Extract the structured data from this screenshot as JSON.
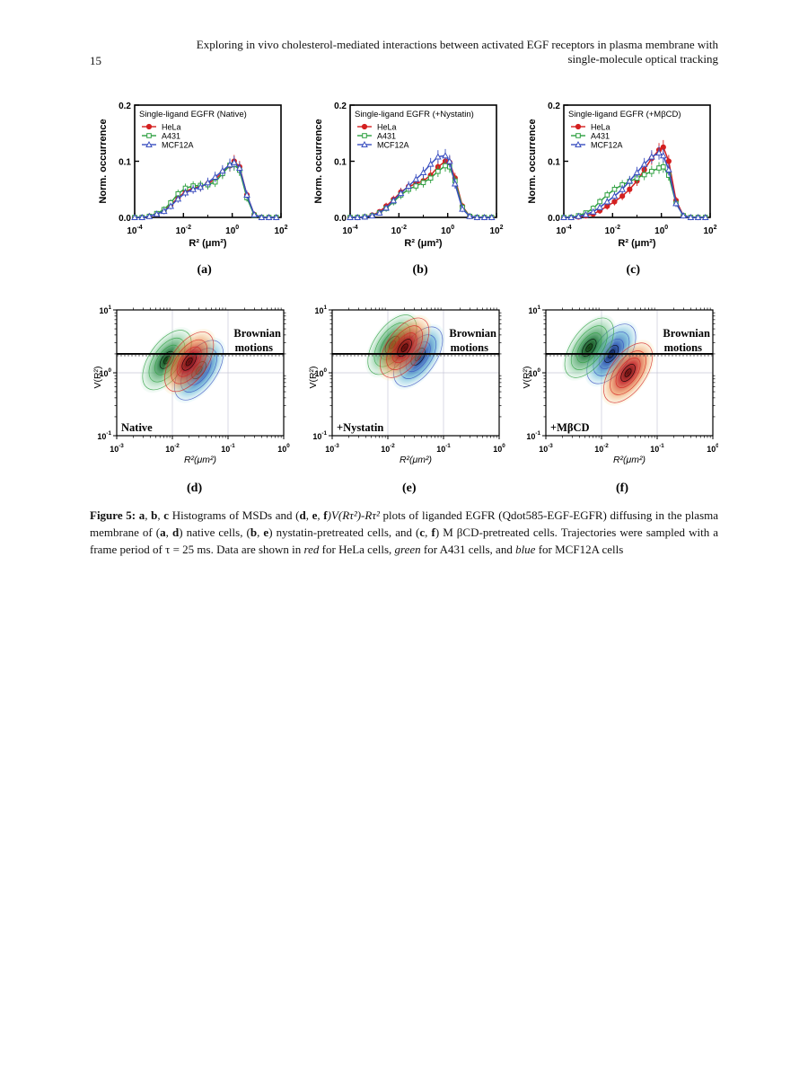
{
  "header": {
    "page_number": "15",
    "running_title_line1": "Exploring in vivo cholesterol-mediated interactions between activated EGF receptors in plasma membrane with",
    "running_title_line2": "single-molecule optical tracking"
  },
  "colors": {
    "HeLa": "#d42020",
    "A431": "#2ea040",
    "MCF12A": "#3a4fc0"
  },
  "panels_top": [
    {
      "label": "(a)",
      "title": "Single-ligand EGFR (Native)"
    },
    {
      "label": "(b)",
      "title": "Single-ligand EGFR (+Nystatin)"
    },
    {
      "label": "(c)",
      "title": "Single-ligand EGFR (+MβCD)"
    }
  ],
  "panels_bottom": [
    {
      "label": "(d)",
      "condition": "Native"
    },
    {
      "label": "(e)",
      "condition": "+Nystatin"
    },
    {
      "label": "(f)",
      "condition": "+MβCD"
    }
  ],
  "brownian_label_1": "Brownian",
  "brownian_label_2": "motions",
  "chart_data": [
    {
      "type": "line",
      "title": "Single-ligand EGFR (Native)",
      "xlabel": "R² (μm²)",
      "ylabel": "Norm. occurrence",
      "xscale": "log",
      "xlim": [
        0.0001,
        100
      ],
      "ylim": [
        0,
        0.2
      ],
      "xticks": [
        "10-4",
        "10-2",
        "100",
        "102"
      ],
      "yticks": [
        "0.0",
        "0.1",
        "0.2"
      ],
      "legend": "top-left",
      "x": [
        0.0001,
        0.0002,
        0.0004,
        0.0008,
        0.0016,
        0.003,
        0.006,
        0.012,
        0.025,
        0.05,
        0.1,
        0.2,
        0.4,
        0.8,
        1.2,
        2,
        4,
        8,
        16,
        32,
        64
      ],
      "series": [
        {
          "name": "HeLa",
          "values": [
            0,
            0,
            0.002,
            0.006,
            0.012,
            0.022,
            0.035,
            0.046,
            0.052,
            0.055,
            0.06,
            0.068,
            0.08,
            0.092,
            0.1,
            0.09,
            0.04,
            0.005,
            0,
            0,
            0
          ]
        },
        {
          "name": "A431",
          "values": [
            0,
            0,
            0.002,
            0.007,
            0.014,
            0.026,
            0.042,
            0.052,
            0.056,
            0.057,
            0.058,
            0.063,
            0.078,
            0.093,
            0.094,
            0.084,
            0.035,
            0.004,
            0,
            0,
            0
          ]
        },
        {
          "name": "MCF12A",
          "values": [
            0,
            0,
            0.002,
            0.006,
            0.011,
            0.02,
            0.033,
            0.044,
            0.05,
            0.054,
            0.062,
            0.072,
            0.083,
            0.094,
            0.098,
            0.088,
            0.04,
            0.005,
            0,
            0,
            0
          ]
        }
      ]
    },
    {
      "type": "line",
      "title": "Single-ligand EGFR (+Nystatin)",
      "xlabel": "R² (μm²)",
      "ylabel": "Norm. occurrence",
      "xscale": "log",
      "xlim": [
        0.0001,
        100
      ],
      "ylim": [
        0,
        0.2
      ],
      "xticks": [
        "10-4",
        "10-2",
        "100",
        "102"
      ],
      "yticks": [
        "0.0",
        "0.1",
        "0.2"
      ],
      "legend": "top-left",
      "x": [
        0.0001,
        0.0002,
        0.0004,
        0.0008,
        0.0016,
        0.003,
        0.006,
        0.012,
        0.025,
        0.05,
        0.1,
        0.2,
        0.4,
        0.8,
        1.2,
        2,
        4,
        8,
        16,
        32,
        64
      ],
      "series": [
        {
          "name": "HeLa",
          "values": [
            0,
            0,
            0.001,
            0.004,
            0.01,
            0.02,
            0.032,
            0.045,
            0.055,
            0.06,
            0.065,
            0.075,
            0.09,
            0.1,
            0.098,
            0.07,
            0.02,
            0.002,
            0,
            0,
            0
          ]
        },
        {
          "name": "A431",
          "values": [
            0,
            0,
            0.001,
            0.003,
            0.008,
            0.016,
            0.028,
            0.04,
            0.05,
            0.056,
            0.062,
            0.07,
            0.082,
            0.092,
            0.09,
            0.065,
            0.018,
            0.002,
            0,
            0,
            0
          ]
        },
        {
          "name": "MCF12A",
          "values": [
            0,
            0,
            0.001,
            0.003,
            0.008,
            0.017,
            0.03,
            0.043,
            0.056,
            0.068,
            0.08,
            0.095,
            0.108,
            0.11,
            0.1,
            0.06,
            0.015,
            0.002,
            0,
            0,
            0
          ]
        }
      ]
    },
    {
      "type": "line",
      "title": "Single-ligand EGFR (+MβCD)",
      "xlabel": "R² (μm²)",
      "ylabel": "Norm. occurrence",
      "xscale": "log",
      "xlim": [
        0.0001,
        100
      ],
      "ylim": [
        0,
        0.2
      ],
      "xticks": [
        "10-4",
        "10-2",
        "100",
        "102"
      ],
      "yticks": [
        "0.0",
        "0.1",
        "0.2"
      ],
      "legend": "top-left",
      "x": [
        0.0001,
        0.0002,
        0.0004,
        0.0008,
        0.0016,
        0.003,
        0.006,
        0.012,
        0.025,
        0.05,
        0.1,
        0.2,
        0.4,
        0.8,
        1.2,
        2,
        4,
        8,
        16,
        32,
        64
      ],
      "series": [
        {
          "name": "HeLa",
          "values": [
            0,
            0,
            0.001,
            0.003,
            0.006,
            0.012,
            0.02,
            0.028,
            0.038,
            0.05,
            0.065,
            0.085,
            0.105,
            0.12,
            0.125,
            0.1,
            0.03,
            0.003,
            0,
            0,
            0
          ]
        },
        {
          "name": "A431",
          "values": [
            0,
            0,
            0.003,
            0.008,
            0.016,
            0.028,
            0.04,
            0.05,
            0.058,
            0.064,
            0.07,
            0.076,
            0.082,
            0.088,
            0.09,
            0.075,
            0.025,
            0.003,
            0,
            0,
            0
          ]
        },
        {
          "name": "MCF12A",
          "values": [
            0,
            0,
            0.002,
            0.005,
            0.01,
            0.018,
            0.028,
            0.038,
            0.05,
            0.065,
            0.08,
            0.095,
            0.108,
            0.115,
            0.11,
            0.085,
            0.025,
            0.003,
            0,
            0,
            0
          ]
        }
      ]
    },
    {
      "type": "heatmap",
      "condition": "Native",
      "xlabel": "R²(μm²)",
      "ylabel": "V(R²)",
      "xscale": "log",
      "yscale": "log",
      "xlim": [
        0.001,
        1
      ],
      "ylim": [
        0.1,
        10
      ],
      "xticks": [
        "10-3",
        "10-2",
        "10-1",
        "100"
      ],
      "yticks": [
        "10-1",
        "100",
        "101"
      ],
      "brownian_line_y": 2,
      "peaks": [
        {
          "name": "HeLa",
          "x": 0.02,
          "y": 1.5
        },
        {
          "name": "A431",
          "x": 0.008,
          "y": 1.6
        },
        {
          "name": "MCF12A",
          "x": 0.03,
          "y": 1.1
        }
      ]
    },
    {
      "type": "heatmap",
      "condition": "+Nystatin",
      "xlabel": "R²(μm²)",
      "ylabel": "V(R²)",
      "xscale": "log",
      "yscale": "log",
      "xlim": [
        0.001,
        1
      ],
      "ylim": [
        0.1,
        10
      ],
      "xticks": [
        "10-3",
        "10-2",
        "10-1",
        "100"
      ],
      "yticks": [
        "10-1",
        "100",
        "101"
      ],
      "brownian_line_y": 2,
      "peaks": [
        {
          "name": "HeLa",
          "x": 0.02,
          "y": 2.5
        },
        {
          "name": "A431",
          "x": 0.012,
          "y": 2.8
        },
        {
          "name": "MCF12A",
          "x": 0.035,
          "y": 1.8
        }
      ]
    },
    {
      "type": "heatmap",
      "condition": "+MβCD",
      "xlabel": "R²(μm²)",
      "ylabel": "V(R²)",
      "xscale": "log",
      "yscale": "log",
      "xlim": [
        0.001,
        1
      ],
      "ylim": [
        0.1,
        10
      ],
      "xticks": [
        "10-3",
        "10-2",
        "10-1",
        "100"
      ],
      "yticks": [
        "10-1",
        "100",
        "101"
      ],
      "brownian_line_y": 2,
      "peaks": [
        {
          "name": "HeLa",
          "x": 0.03,
          "y": 1.0
        },
        {
          "name": "A431",
          "x": 0.006,
          "y": 2.5
        },
        {
          "name": "MCF12A",
          "x": 0.015,
          "y": 2.0
        }
      ]
    }
  ],
  "caption": {
    "fig_label": "Figure 5:",
    "text_1": "a",
    "text_2": "b",
    "text_3": "c",
    "text_4": "Histograms of MSDs and (",
    "text_5": "d",
    "text_6": "e",
    "text_7": "f",
    "formula": ")V(Rτ²)-Rτ²",
    "text_8": "plots of liganded EGFR (Qdot585-EGF-EGFR) diffusing in the plasma membrane of (",
    "text_9": "a",
    "text_10": "d",
    "text_11": ") native cells, (",
    "text_12": "b",
    "text_13": "e",
    "text_14": ") nystatin-pretreated cells, and (",
    "text_15": "c",
    "text_16": "f",
    "text_17": ") M βCD-pretreated cells. Trajectories were sampled with a frame period of τ = 25 ms. Data are shown in ",
    "red": "red",
    "text_18": " for HeLa cells, ",
    "green": "green",
    "text_19": " for A431 cells, and ",
    "blue": "blue",
    "text_20": " for MCF12A cells"
  }
}
